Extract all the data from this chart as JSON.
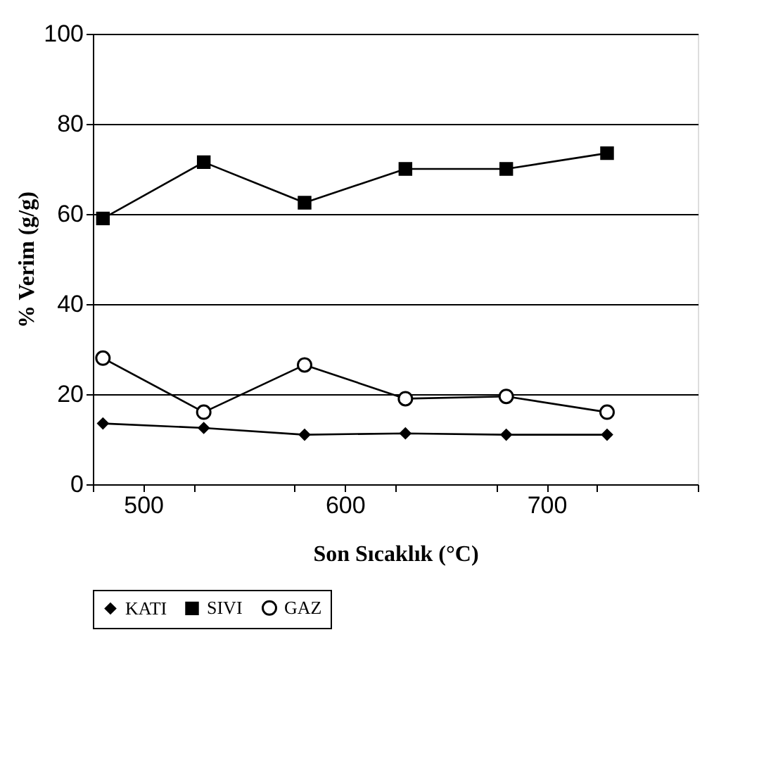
{
  "chart_data": {
    "type": "line",
    "xlabel": "Son Sıcaklık (°C)",
    "ylabel": "% Verim (g/g)",
    "x": [
      480,
      530,
      580,
      630,
      680,
      730
    ],
    "xlim": [
      475,
      775
    ],
    "xticks": [
      {
        "value": 475,
        "label": null
      },
      500,
      {
        "value": 525,
        "label": null
      },
      {
        "value": 575,
        "label": null
      },
      600,
      {
        "value": 625,
        "label": null
      },
      {
        "value": 675,
        "label": null
      },
      700,
      {
        "value": 725,
        "label": null
      },
      {
        "value": 775,
        "label": null
      }
    ],
    "ylim": [
      0,
      100
    ],
    "yticks": [
      0,
      20,
      40,
      60,
      80,
      100
    ],
    "grid": "y",
    "legend": "bottom",
    "series": [
      {
        "name": "KATI",
        "color": "#000000",
        "marker": "diamond",
        "values": [
          13.5,
          12.5,
          11,
          11.3,
          11,
          11
        ]
      },
      {
        "name": "SIVI",
        "color": "#000000",
        "marker": "square",
        "values": [
          59,
          71.5,
          62.5,
          70,
          70,
          73.5
        ]
      },
      {
        "name": "GAZ",
        "color": "#000000",
        "marker": "circle",
        "values": [
          28,
          16,
          26.5,
          19,
          19.5,
          16
        ]
      }
    ]
  }
}
